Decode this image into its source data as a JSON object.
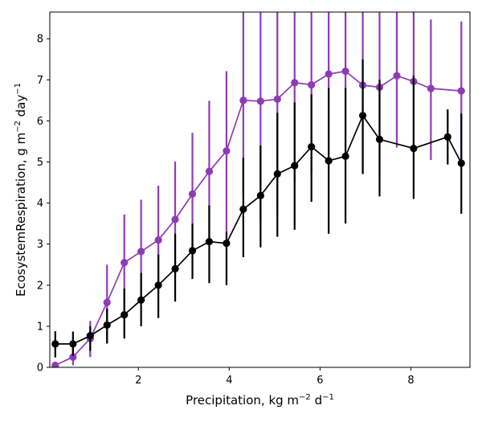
{
  "chart_data": {
    "type": "line",
    "xlabel": "Precipitation,  kg m⁻² d⁻¹",
    "xlabel_parts": {
      "main": "Precipitation,  kg m",
      "exp1": "−2",
      "mid": " d",
      "exp2": "−1"
    },
    "ylabel": "EcosystemRespiration,  g m⁻² day⁻¹",
    "ylabel_parts": {
      "main": "EcosystemRespiration,  g m",
      "exp1": "−2",
      "mid": " day",
      "exp2": "−1"
    },
    "xlim": [
      0.05,
      9.3
    ],
    "ylim": [
      0,
      8.65
    ],
    "xticks": [
      2,
      4,
      6,
      8
    ],
    "yticks": [
      0,
      1,
      2,
      3,
      4,
      5,
      6,
      7,
      8
    ],
    "grid": false,
    "legend": "none",
    "series": [
      {
        "color": "#8e3bb4",
        "x": [
          0.17,
          0.56,
          0.94,
          1.31,
          1.69,
          2.06,
          2.44,
          2.81,
          3.19,
          3.56,
          3.94,
          4.31,
          4.69,
          5.06,
          5.44,
          5.81,
          6.19,
          6.56,
          6.94,
          7.31,
          7.69,
          8.06,
          8.44,
          9.11
        ],
        "y": [
          0.05,
          0.25,
          0.7,
          1.58,
          2.55,
          2.82,
          3.1,
          3.6,
          4.22,
          4.77,
          5.27,
          6.5,
          6.48,
          6.53,
          6.93,
          6.88,
          7.14,
          7.21,
          6.87,
          6.82,
          7.1,
          6.96,
          6.79,
          6.73
        ],
        "err_low": [
          0.05,
          0.05,
          0.25,
          0.58,
          1.4,
          1.55,
          1.8,
          2.2,
          2.75,
          3.1,
          3.25,
          4.2,
          3.55,
          3.7,
          4.5,
          4.75,
          5.2,
          5.35,
          4.7,
          4.65,
          5.35,
          5.3,
          5.05,
          5.0
        ],
        "err_high": [
          0.05,
          0.48,
          1.13,
          2.5,
          3.72,
          4.08,
          4.42,
          5.01,
          5.71,
          6.49,
          7.21,
          8.65,
          8.65,
          8.65,
          8.65,
          8.65,
          8.65,
          8.65,
          8.65,
          8.65,
          8.65,
          8.65,
          8.47,
          8.42
        ]
      },
      {
        "color": "#000000",
        "x": [
          0.17,
          0.56,
          0.94,
          1.31,
          1.69,
          2.06,
          2.44,
          2.81,
          3.19,
          3.56,
          3.94,
          4.31,
          4.69,
          5.06,
          5.44,
          5.81,
          6.19,
          6.56,
          6.94,
          7.31,
          8.06,
          8.81,
          9.11
        ],
        "y": [
          0.57,
          0.57,
          0.77,
          1.03,
          1.28,
          1.64,
          2.0,
          2.4,
          2.84,
          3.06,
          3.02,
          3.85,
          4.18,
          4.71,
          4.91,
          5.37,
          5.03,
          5.14,
          6.13,
          5.55,
          5.33,
          5.61,
          4.97
        ],
        "err_low": [
          0.24,
          0.28,
          0.4,
          0.58,
          0.7,
          1.0,
          1.2,
          1.6,
          2.15,
          2.05,
          2.0,
          2.68,
          2.92,
          3.18,
          3.35,
          4.03,
          3.25,
          3.5,
          4.72,
          4.16,
          4.1,
          4.94,
          3.74
        ],
        "err_high": [
          0.88,
          0.87,
          1.0,
          1.43,
          1.92,
          2.3,
          2.75,
          3.25,
          3.5,
          3.94,
          3.3,
          5.1,
          5.4,
          6.2,
          6.45,
          6.65,
          6.8,
          6.8,
          7.5,
          7.0,
          7.1,
          6.28,
          6.18
        ]
      }
    ]
  }
}
